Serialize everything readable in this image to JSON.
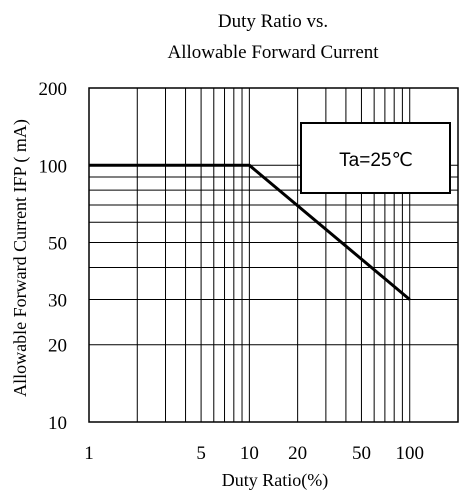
{
  "chart_data": {
    "type": "line",
    "title_line1": "Duty Ratio vs.",
    "title_line2": "Allowable Forward Current",
    "xlabel": "Duty Ratio(%)",
    "ylabel": "Allowable Forward Current IFP ( mA)",
    "x_scale": "log",
    "y_scale": "log",
    "xlim": [
      1,
      200
    ],
    "ylim": [
      10,
      200
    ],
    "x_ticks": [
      {
        "value": 1,
        "label": "1"
      },
      {
        "value": 5,
        "label": "5"
      },
      {
        "value": 10,
        "label": "10"
      },
      {
        "value": 20,
        "label": "20"
      },
      {
        "value": 50,
        "label": "50"
      },
      {
        "value": 100,
        "label": "100"
      }
    ],
    "y_ticks": [
      {
        "value": 10,
        "label": "10"
      },
      {
        "value": 20,
        "label": "20"
      },
      {
        "value": 30,
        "label": "30"
      },
      {
        "value": 50,
        "label": "50"
      },
      {
        "value": 100,
        "label": "100"
      },
      {
        "value": 200,
        "label": "200"
      }
    ],
    "x_grid": [
      2,
      3,
      4,
      5,
      6,
      7,
      8,
      9,
      10,
      20,
      30,
      40,
      50,
      60,
      70,
      80,
      90,
      100
    ],
    "y_grid": [
      20,
      30,
      40,
      50,
      60,
      70,
      80,
      90,
      100
    ],
    "grid": true,
    "series": [
      {
        "x": [
          1,
          10,
          100
        ],
        "y": [
          100,
          100,
          30
        ]
      }
    ],
    "annotation": "Ta=25℃",
    "annotation_position": "top-right"
  }
}
